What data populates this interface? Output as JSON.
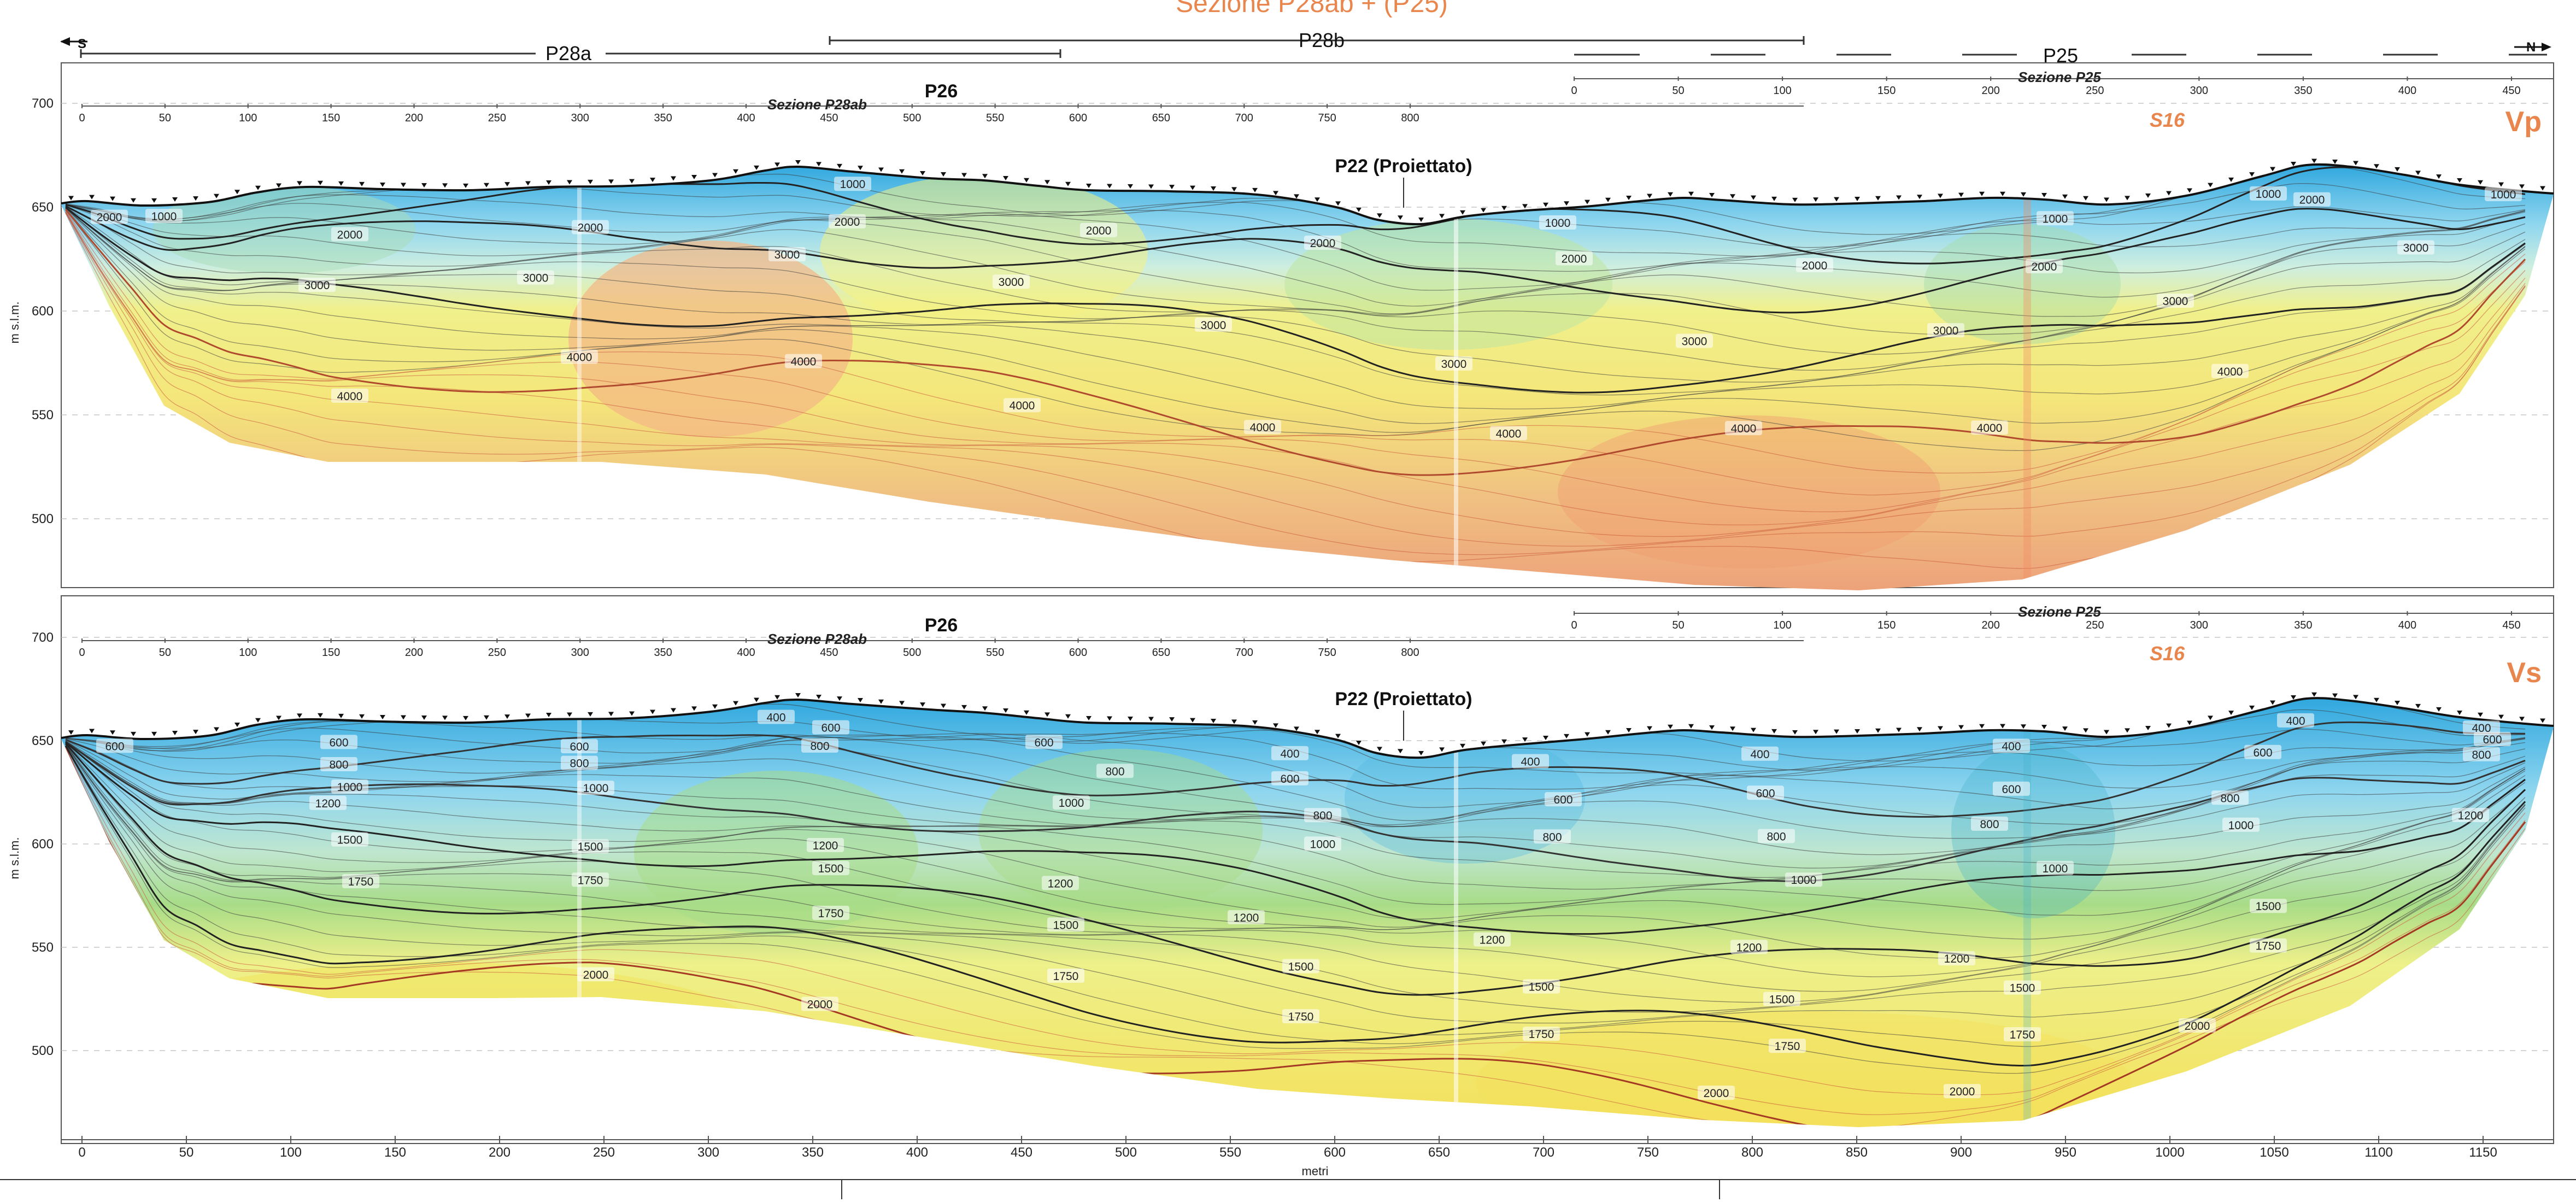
{
  "header": {
    "title": "Sezione P28ab + (P25)",
    "section_labels": [
      "P28a",
      "P28b",
      "P25"
    ],
    "south": "S",
    "north": "N"
  },
  "panels": [
    {
      "id": "vp",
      "label": "Vp",
      "y_axis_label": "m s.l.m.",
      "y_ticks": [
        "700",
        "650",
        "600",
        "550",
        "500"
      ],
      "section_p28ab": "Sezione P28ab",
      "section_p25": "Sezione P25",
      "p26": "P26",
      "p22": "P22 (Proiettato)",
      "s16": "S16",
      "p28ab_ticks": [
        "0",
        "50",
        "100",
        "150",
        "200",
        "250",
        "300",
        "350",
        "400",
        "450",
        "500",
        "550",
        "600",
        "650",
        "700",
        "750",
        "800"
      ],
      "p25_ticks": [
        "0",
        "50",
        "100",
        "150",
        "200",
        "250",
        "300",
        "350",
        "400",
        "450"
      ],
      "contours": [
        "1000",
        "2000",
        "3000",
        "4000"
      ],
      "colors": {
        "low": "#43b6e4",
        "mid": "#f2ee82",
        "high": "#eda77a"
      }
    },
    {
      "id": "vs",
      "label": "Vs",
      "y_axis_label": "m s.l.m.",
      "y_ticks": [
        "700",
        "650",
        "600",
        "550",
        "500"
      ],
      "section_p28ab": "Sezione P28ab",
      "section_p25": "Sezione P25",
      "p26": "P26",
      "p22": "P22 (Proiettato)",
      "s16": "S16",
      "p28ab_ticks": [
        "0",
        "50",
        "100",
        "150",
        "200",
        "250",
        "300",
        "350",
        "400",
        "450",
        "500",
        "550",
        "600",
        "650",
        "700",
        "750",
        "800"
      ],
      "p25_ticks": [
        "0",
        "50",
        "100",
        "150",
        "200",
        "250",
        "300",
        "350",
        "400",
        "450"
      ],
      "contours": [
        "400",
        "600",
        "800",
        "1000",
        "1200",
        "1500",
        "1750",
        "2000"
      ],
      "colors": {
        "low": "#43b6e4",
        "mid": "#f2ee82",
        "high": "#eda77a"
      }
    }
  ],
  "x_axis": {
    "label": "metri",
    "ticks": [
      "0",
      "50",
      "100",
      "150",
      "200",
      "250",
      "300",
      "350",
      "400",
      "450",
      "500",
      "550",
      "600",
      "650",
      "700",
      "750",
      "800",
      "850",
      "900",
      "950",
      "1000",
      "1050",
      "1100",
      "1150"
    ]
  }
}
